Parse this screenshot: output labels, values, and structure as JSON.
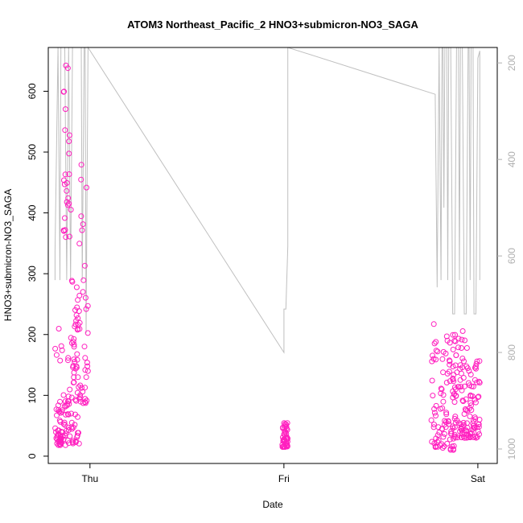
{
  "chart_data": {
    "type": "scatter",
    "title": "ATOM3 Northeast_Pacific_2 HNO3+submicron-NO3_SAGA",
    "xlabel": "Date",
    "ylabel": "HNO3+submicron-NO3_SAGA",
    "x_ticks": [
      {
        "value": 1.0,
        "label": "Thu"
      },
      {
        "value": 2.0,
        "label": "Fri"
      },
      {
        "value": 3.0,
        "label": "Sat"
      }
    ],
    "xlim": [
      0.785,
      3.1
    ],
    "ylim": [
      -12,
      672
    ],
    "y_ticks": [
      0,
      100,
      200,
      300,
      400,
      500,
      600
    ],
    "y2_ticks": [
      200,
      400,
      600,
      800,
      1000
    ],
    "y2lim": [
      1030,
      168
    ],
    "grid": false,
    "colors": {
      "points": "#ff1fbf",
      "altitude_line": "#bfbfbf",
      "axis": "#000000",
      "right_axis": "#b0b0b0"
    },
    "series": [
      {
        "marker": "circle-open",
        "clusters": [
          {
            "x_range": [
              0.82,
              0.86
            ],
            "bands": [
              [
                18,
                90,
                40
              ],
              [
                140,
                215,
                6
              ]
            ]
          },
          {
            "x_range": [
              0.86,
              0.905
            ],
            "bands": [
              [
                18,
                110,
                30
              ],
              [
                360,
                650,
                26
              ],
              [
                150,
                200,
                3
              ]
            ]
          },
          {
            "x_range": [
              0.905,
              0.945
            ],
            "bands": [
              [
                20,
                170,
                35
              ],
              [
                180,
                290,
                20
              ]
            ]
          },
          {
            "x_range": [
              0.945,
              0.99
            ],
            "bands": [
              [
                85,
                320,
                30
              ],
              [
                320,
                560,
                7
              ]
            ]
          },
          {
            "x_range": [
              1.99,
              2.02
            ],
            "bands": [
              [
                15,
                57,
                45
              ]
            ]
          },
          {
            "x_range": [
              2.76,
              2.8
            ],
            "bands": [
              [
                15,
                225,
                30
              ]
            ]
          },
          {
            "x_range": [
              2.8,
              2.88
            ],
            "bands": [
              [
                10,
                200,
                65
              ]
            ]
          },
          {
            "x_range": [
              2.88,
              2.95
            ],
            "bands": [
              [
                30,
                225,
                70
              ]
            ]
          },
          {
            "x_range": [
              2.95,
              3.01
            ],
            "bands": [
              [
                30,
                165,
                55
              ]
            ]
          }
        ]
      },
      {
        "axis": "right",
        "points": [
          [
            0.82,
            650
          ],
          [
            0.82,
            590
          ],
          [
            0.835,
            165
          ],
          [
            0.845,
            650
          ],
          [
            0.85,
            165
          ],
          [
            0.87,
            165
          ],
          [
            0.88,
            650
          ],
          [
            0.89,
            165
          ],
          [
            0.9,
            650
          ],
          [
            0.91,
            165
          ],
          [
            0.955,
            165
          ],
          [
            0.96,
            650
          ],
          [
            0.97,
            165
          ],
          [
            0.975,
            165
          ],
          [
            0.98,
            760
          ],
          [
            0.99,
            165
          ],
          [
            2.0,
            800
          ],
          [
            2.0,
            710
          ],
          [
            2.01,
            710
          ],
          [
            2.02,
            580
          ],
          [
            2.02,
            165
          ],
          [
            2.78,
            265
          ],
          [
            2.79,
            665
          ],
          [
            2.8,
            168
          ],
          [
            2.81,
            650
          ],
          [
            2.815,
            168
          ],
          [
            2.82,
            168
          ],
          [
            2.825,
            500
          ],
          [
            2.83,
            168
          ],
          [
            2.84,
            168
          ],
          [
            2.845,
            650
          ],
          [
            2.85,
            168
          ],
          [
            2.86,
            168
          ],
          [
            2.87,
            720
          ],
          [
            2.88,
            720
          ],
          [
            2.89,
            168
          ],
          [
            2.9,
            168
          ],
          [
            2.905,
            650
          ],
          [
            2.91,
            168
          ],
          [
            2.92,
            168
          ],
          [
            2.93,
            720
          ],
          [
            2.94,
            720
          ],
          [
            2.95,
            168
          ],
          [
            2.955,
            168
          ],
          [
            2.96,
            650
          ],
          [
            2.965,
            168
          ],
          [
            2.975,
            168
          ],
          [
            2.98,
            720
          ],
          [
            2.99,
            720
          ],
          [
            3.0,
            190
          ],
          [
            3.01,
            175
          ],
          [
            3.01,
            650
          ]
        ]
      }
    ]
  }
}
